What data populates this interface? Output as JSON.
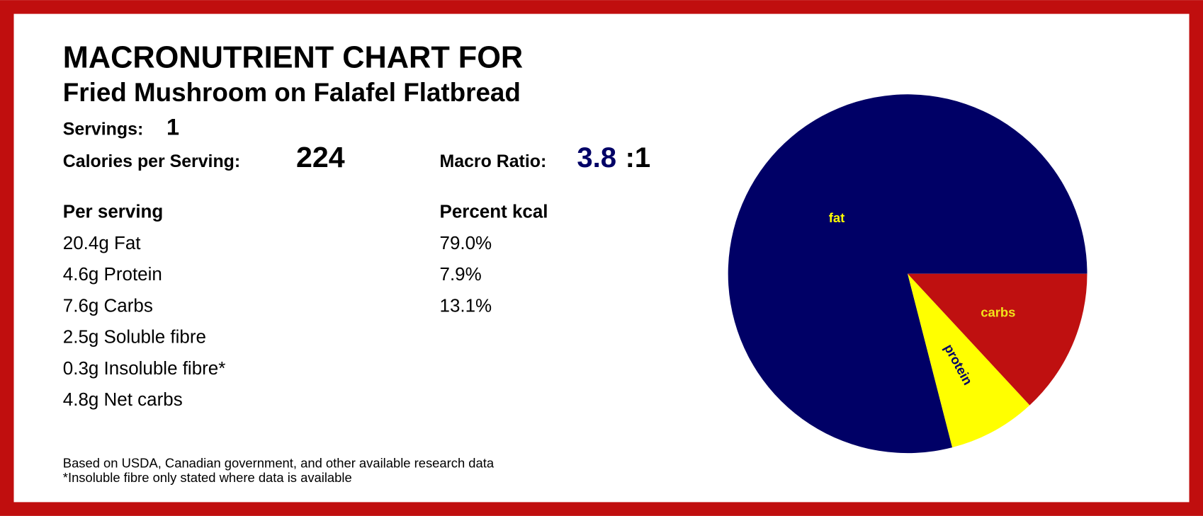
{
  "header": {
    "title": "MACRONUTRIENT CHART FOR",
    "subtitle": "Fried Mushroom on Falafel Flatbread",
    "servings_label": "Servings:",
    "servings": 1,
    "calories_label": "Calories per Serving:",
    "calories": 224,
    "ratio_label": "Macro Ratio:",
    "ratio_value": "3.8",
    "ratio_suffix": ":1"
  },
  "per_serving": {
    "heading": "Per serving",
    "rows": [
      "20.4g Fat",
      "4.6g Protein",
      "7.6g Carbs",
      "2.5g Soluble fibre",
      "0.3g Insoluble fibre*",
      "4.8g Net carbs"
    ]
  },
  "percent_heading": "Percent kcal",
  "footnotes": [
    "Based on USDA, Canadian government, and other available research data",
    "*Insoluble fibre only stated where data is available"
  ],
  "chart_data": {
    "type": "pie",
    "categories": [
      "fat",
      "protein",
      "carbs"
    ],
    "values": [
      79.0,
      7.9,
      13.1
    ],
    "value_labels": [
      "79.0%",
      "7.9%",
      "13.1%"
    ],
    "colors": [
      "#000066",
      "#ffff00",
      "#bf1010"
    ],
    "label_colors": [
      "#ffff00",
      "#000066",
      "#f2e21a"
    ]
  }
}
